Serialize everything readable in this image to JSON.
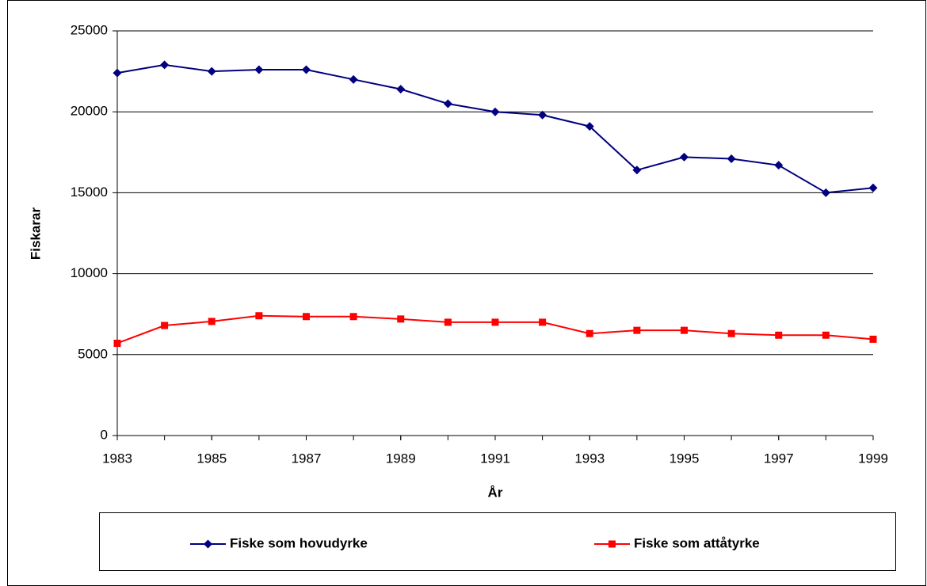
{
  "chart_data": {
    "type": "line",
    "x_label": "År",
    "y_label": "Fiskarar",
    "x": [
      1983,
      1984,
      1985,
      1986,
      1987,
      1988,
      1989,
      1990,
      1991,
      1992,
      1993,
      1994,
      1995,
      1996,
      1997,
      1998,
      1999
    ],
    "series": [
      {
        "name": "Fiske som hovudyrke",
        "color": "#000080",
        "marker": "diamond",
        "values": [
          22400,
          22900,
          22500,
          22600,
          22600,
          22000,
          21400,
          20500,
          20000,
          19800,
          19100,
          16400,
          17200,
          17100,
          16700,
          15000,
          15300
        ]
      },
      {
        "name": "Fiske som attåtyrke",
        "color": "#ff0000",
        "marker": "square",
        "values": [
          5700,
          6800,
          7050,
          7400,
          7350,
          7350,
          7200,
          7000,
          7000,
          7000,
          6300,
          6500,
          6500,
          6300,
          6200,
          6200,
          5950
        ]
      }
    ],
    "xlim": [
      1983,
      1999
    ],
    "xticks": [
      1983,
      1985,
      1987,
      1989,
      1991,
      1993,
      1995,
      1997,
      1999
    ],
    "ylim": [
      0,
      25000
    ],
    "yticks": [
      0,
      5000,
      10000,
      15000,
      20000,
      25000
    ],
    "grid": true,
    "legend": "bottom"
  }
}
